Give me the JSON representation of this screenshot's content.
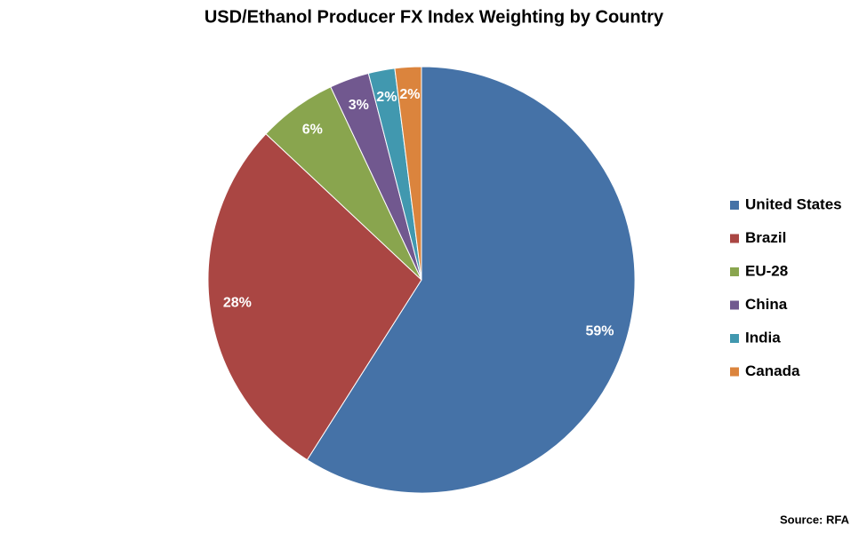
{
  "chart_data": {
    "type": "pie",
    "title": "USD/Ethanol Producer FX Index Weighting by Country",
    "categories": [
      "United States",
      "Brazil",
      "EU-28",
      "China",
      "India",
      "Canada"
    ],
    "values": [
      59,
      28,
      6,
      3,
      2,
      2
    ],
    "value_labels": [
      "59%",
      "28%",
      "6%",
      "3%",
      "2%",
      "2%"
    ],
    "colors": [
      "#4572a7",
      "#aa4643",
      "#89a54e",
      "#71588f",
      "#4198af",
      "#db843d"
    ],
    "legend": "right",
    "source": "Source: RFA"
  }
}
